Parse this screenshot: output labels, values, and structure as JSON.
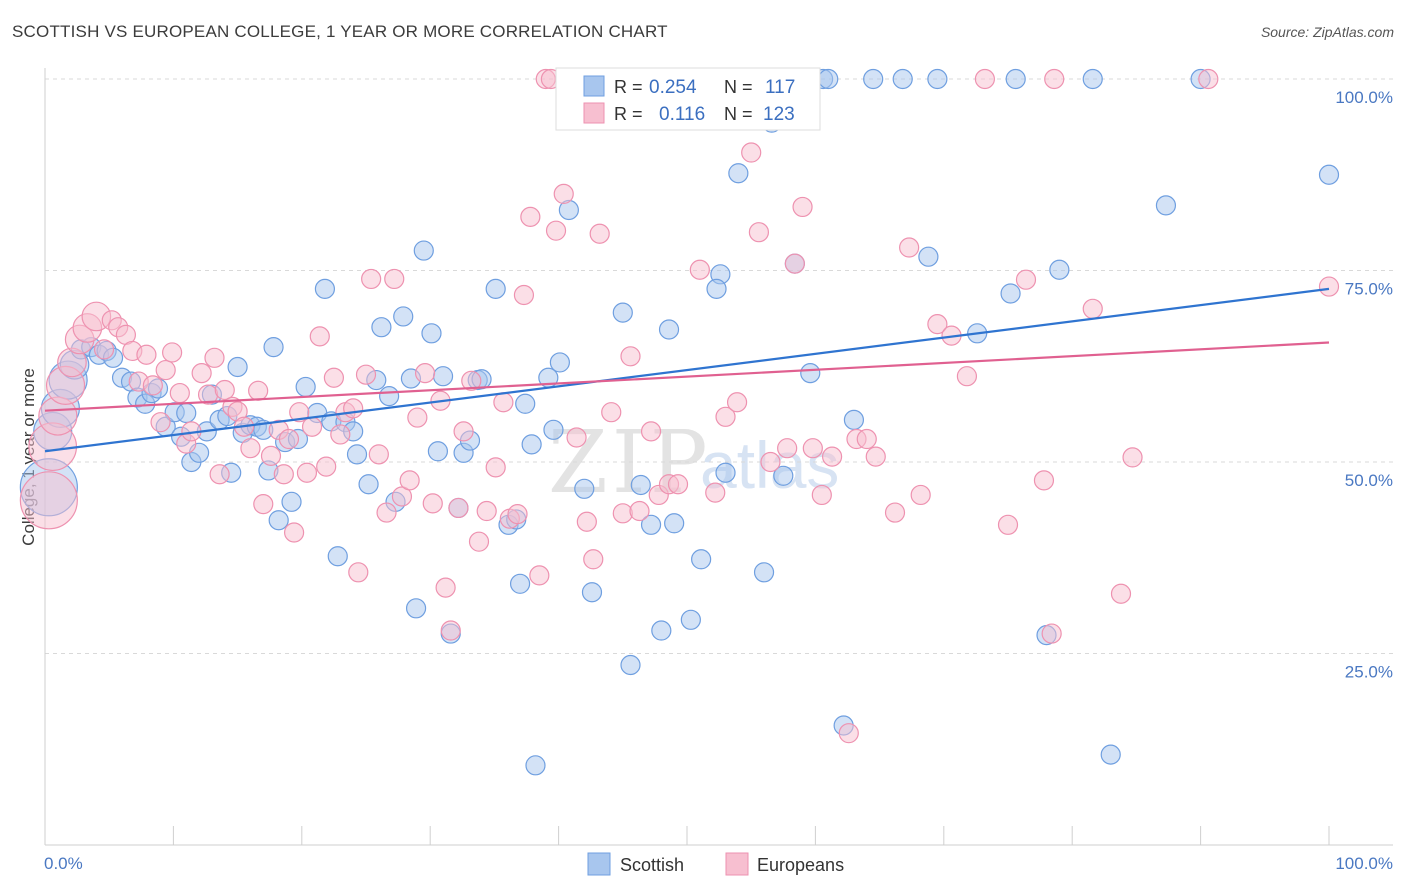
{
  "header": {
    "title": "SCOTTISH VS EUROPEAN COLLEGE, 1 YEAR OR MORE CORRELATION CHART",
    "source": "Source: ZipAtlas.com"
  },
  "colors": {
    "scottish_fill": "#a8c6ee",
    "scottish_stroke": "#6f9fe0",
    "scottish_line": "#2f74d0",
    "europeans_fill": "#f7bfd0",
    "europeans_stroke": "#ee92b0",
    "europeans_line": "#e06090",
    "tick_label": "#4a78c2",
    "grid": "#d9d9d9"
  },
  "legend_top": {
    "row1": {
      "r_label": "R =",
      "r_value": "0.254",
      "n_label": "N =",
      "n_value": "117"
    },
    "row2": {
      "r_label": "R =",
      "r_value": "0.116",
      "n_label": "N =",
      "n_value": "123"
    }
  },
  "legend_bottom": {
    "series1": "Scottish",
    "series2": "Europeans"
  },
  "watermark": {
    "part1": "ZIP",
    "part2": "atlas"
  },
  "chart_data": {
    "type": "scatter",
    "title": "SCOTTISH VS EUROPEAN COLLEGE, 1 YEAR OR MORE CORRELATION CHART",
    "xlabel": "",
    "ylabel": "College, 1 year or more",
    "xlim": [
      0,
      100
    ],
    "ylim": [
      0,
      100
    ],
    "x_tick_labels": [
      "0.0%",
      "100.0%"
    ],
    "y_ticks": [
      25,
      50,
      75,
      100
    ],
    "y_tick_labels": [
      "25.0%",
      "50.0%",
      "75.0%",
      "100.0%"
    ],
    "grid": "horizontal dashed",
    "legend_placement": "top-center and bottom",
    "series": [
      {
        "name": "Scottish",
        "R": 0.254,
        "N": 117,
        "trend": {
          "x": [
            0,
            100
          ],
          "y": [
            51.4,
            72.6
          ]
        },
        "points": [
          [
            0.3,
            46.7,
            3
          ],
          [
            0.6,
            54,
            2
          ],
          [
            1.2,
            57,
            2
          ],
          [
            1.8,
            60.7,
            2
          ],
          [
            2.3,
            62.7,
            1.5
          ],
          [
            2.8,
            64.7,
            1
          ],
          [
            3.6,
            65,
            1
          ],
          [
            4.2,
            64,
            1
          ],
          [
            4.8,
            64.5,
            1
          ],
          [
            5.3,
            63.6,
            1
          ],
          [
            6,
            61,
            1
          ],
          [
            6.7,
            60.5,
            1
          ],
          [
            7.2,
            58.4,
            1
          ],
          [
            7.8,
            57.6,
            1
          ],
          [
            8.3,
            59,
            1
          ],
          [
            8.8,
            59.6,
            1
          ],
          [
            9.4,
            54.6,
            1
          ],
          [
            10.1,
            56.5,
            1
          ],
          [
            10.6,
            53.3,
            1
          ],
          [
            11,
            56.4,
            1
          ],
          [
            11.4,
            50,
            1
          ],
          [
            12,
            51.2,
            1
          ],
          [
            12.6,
            54,
            1
          ],
          [
            13,
            58.8,
            1
          ],
          [
            13.6,
            55.5,
            1
          ],
          [
            14.2,
            56,
            1
          ],
          [
            14.5,
            48.6,
            1
          ],
          [
            15,
            62.4,
            1
          ],
          [
            15.4,
            53.8,
            1
          ],
          [
            16,
            54.8,
            1
          ],
          [
            16.5,
            54.6,
            1
          ],
          [
            17,
            54.2,
            1
          ],
          [
            17.4,
            48.9,
            1
          ],
          [
            17.8,
            65,
            1
          ],
          [
            18.2,
            42.4,
            1
          ],
          [
            18.7,
            52.6,
            1
          ],
          [
            19.2,
            44.8,
            1
          ],
          [
            19.7,
            53,
            1
          ],
          [
            20.3,
            59.8,
            1
          ],
          [
            21.2,
            56.4,
            1
          ],
          [
            21.8,
            72.6,
            1
          ],
          [
            22.3,
            55.3,
            1
          ],
          [
            22.8,
            37.7,
            1
          ],
          [
            23.4,
            55.2,
            1
          ],
          [
            24,
            54,
            1
          ],
          [
            24.3,
            51,
            1
          ],
          [
            25.2,
            47.1,
            1
          ],
          [
            25.8,
            60.7,
            1
          ],
          [
            26.2,
            67.6,
            1
          ],
          [
            26.8,
            58.6,
            1
          ],
          [
            27.3,
            44.8,
            1
          ],
          [
            27.9,
            69,
            1
          ],
          [
            28.5,
            60.9,
            1
          ],
          [
            28.9,
            30.9,
            1
          ],
          [
            29.5,
            77.6,
            1
          ],
          [
            30.1,
            66.8,
            1
          ],
          [
            30.6,
            51.4,
            1
          ],
          [
            31,
            61.2,
            1
          ],
          [
            31.6,
            27.6,
            1
          ],
          [
            32.2,
            44,
            1
          ],
          [
            32.6,
            51.2,
            1
          ],
          [
            33.1,
            52.8,
            1
          ],
          [
            33.7,
            60.7,
            1
          ],
          [
            34,
            60.8,
            1
          ],
          [
            35.1,
            72.6,
            1
          ],
          [
            36.1,
            41.8,
            1
          ],
          [
            36.7,
            42.5,
            1
          ],
          [
            37,
            34.1,
            1
          ],
          [
            37.4,
            57.6,
            1
          ],
          [
            37.9,
            52.3,
            1
          ],
          [
            38.2,
            10.4,
            1
          ],
          [
            39.2,
            61,
            1
          ],
          [
            39.6,
            54.2,
            1
          ],
          [
            40.1,
            63,
            1
          ],
          [
            40.8,
            82.9,
            1
          ],
          [
            42,
            46.5,
            1
          ],
          [
            42.6,
            33,
            1
          ],
          [
            43.4,
            94.6,
            1
          ],
          [
            45,
            69.5,
            1
          ],
          [
            45.6,
            23.5,
            1
          ],
          [
            46.4,
            47,
            1
          ],
          [
            47.2,
            41.8,
            1
          ],
          [
            48,
            28,
            1
          ],
          [
            48.6,
            67.3,
            1
          ],
          [
            49,
            42,
            1
          ],
          [
            50.3,
            29.4,
            1
          ],
          [
            51.1,
            37.3,
            1
          ],
          [
            52.6,
            74.5,
            1
          ],
          [
            52.3,
            72.6,
            1
          ],
          [
            53,
            48.6,
            1
          ],
          [
            54,
            87.7,
            1
          ],
          [
            54.6,
            100,
            1
          ],
          [
            56,
            35.6,
            1
          ],
          [
            56.6,
            94.3,
            1
          ],
          [
            57.5,
            48.2,
            1
          ],
          [
            58.4,
            75.9,
            1
          ],
          [
            59.6,
            61.6,
            1
          ],
          [
            60.6,
            100,
            1
          ],
          [
            61,
            100,
            1
          ],
          [
            62.2,
            15.6,
            1
          ],
          [
            63,
            55.5,
            1
          ],
          [
            64.5,
            100,
            1
          ],
          [
            66.8,
            100,
            1
          ],
          [
            68.8,
            76.8,
            1
          ],
          [
            69.5,
            100,
            1
          ],
          [
            72.6,
            66.8,
            1
          ],
          [
            75.2,
            72,
            1
          ],
          [
            75.6,
            100,
            1
          ],
          [
            78,
            27.4,
            1
          ],
          [
            79,
            75.1,
            1
          ],
          [
            81.6,
            100,
            1
          ],
          [
            83,
            11.8,
            1
          ],
          [
            87.3,
            83.5,
            1
          ],
          [
            90,
            100,
            1
          ],
          [
            100,
            87.5,
            1
          ]
        ]
      },
      {
        "name": "Europeans",
        "R": 0.116,
        "N": 123,
        "trend": {
          "x": [
            0,
            100
          ],
          "y": [
            56.7,
            65.6
          ]
        },
        "points": [
          [
            0.3,
            45,
            3
          ],
          [
            0.6,
            52,
            2.5
          ],
          [
            1,
            56,
            2
          ],
          [
            1.6,
            60,
            2
          ],
          [
            2.1,
            63,
            1.5
          ],
          [
            2.7,
            66,
            1.5
          ],
          [
            3.3,
            67.5,
            1.5
          ],
          [
            4,
            69,
            1.5
          ],
          [
            4.6,
            64.7,
            1
          ],
          [
            5.2,
            68.5,
            1
          ],
          [
            5.7,
            67.6,
            1
          ],
          [
            6.3,
            66.6,
            1
          ],
          [
            6.8,
            64.5,
            1
          ],
          [
            7.3,
            60.5,
            1
          ],
          [
            7.9,
            64,
            1
          ],
          [
            8.4,
            60,
            1
          ],
          [
            9,
            55.2,
            1
          ],
          [
            9.4,
            62,
            1
          ],
          [
            9.9,
            64.3,
            1
          ],
          [
            10.5,
            59,
            1
          ],
          [
            11,
            52.4,
            1
          ],
          [
            11.4,
            54,
            1
          ],
          [
            12.2,
            61.6,
            1
          ],
          [
            12.7,
            58.8,
            1
          ],
          [
            13.2,
            63.6,
            1
          ],
          [
            13.6,
            48.4,
            1
          ],
          [
            14,
            59.4,
            1
          ],
          [
            14.6,
            57.2,
            1
          ],
          [
            15,
            56.6,
            1
          ],
          [
            15.5,
            54.6,
            1
          ],
          [
            16,
            51.8,
            1
          ],
          [
            16.6,
            59.3,
            1
          ],
          [
            17,
            44.5,
            1
          ],
          [
            17.6,
            50.8,
            1
          ],
          [
            18.2,
            54.2,
            1
          ],
          [
            18.6,
            48.4,
            1
          ],
          [
            19,
            53,
            1
          ],
          [
            19.4,
            40.8,
            1
          ],
          [
            19.8,
            56.5,
            1
          ],
          [
            20.4,
            48.6,
            1
          ],
          [
            20.8,
            54.6,
            1
          ],
          [
            21.4,
            66.4,
            1
          ],
          [
            21.9,
            49.4,
            1
          ],
          [
            22.5,
            61,
            1
          ],
          [
            23,
            53.6,
            1
          ],
          [
            23.4,
            56.5,
            1
          ],
          [
            24,
            57,
            1
          ],
          [
            24.4,
            35.6,
            1
          ],
          [
            25,
            61.4,
            1
          ],
          [
            25.4,
            73.9,
            1
          ],
          [
            26,
            51,
            1
          ],
          [
            26.6,
            43.4,
            1
          ],
          [
            27.2,
            73.9,
            1
          ],
          [
            27.8,
            45.5,
            1
          ],
          [
            28.4,
            47.6,
            1
          ],
          [
            29,
            55.8,
            1
          ],
          [
            29.6,
            61.6,
            1
          ],
          [
            30.2,
            44.6,
            1
          ],
          [
            30.8,
            58,
            1
          ],
          [
            31.2,
            33.6,
            1
          ],
          [
            31.6,
            28,
            1
          ],
          [
            32.2,
            44,
            1
          ],
          [
            32.6,
            54,
            1
          ],
          [
            33.2,
            60.6,
            1
          ],
          [
            33.8,
            39.6,
            1
          ],
          [
            34.4,
            43.6,
            1
          ],
          [
            35.1,
            49.3,
            1
          ],
          [
            35.7,
            57.8,
            1
          ],
          [
            36.2,
            42.6,
            1
          ],
          [
            36.8,
            43.2,
            1
          ],
          [
            37.3,
            71.8,
            1
          ],
          [
            37.8,
            82,
            1
          ],
          [
            38.5,
            35.2,
            1
          ],
          [
            39,
            100,
            1
          ],
          [
            39.4,
            100,
            1
          ],
          [
            39.8,
            80.2,
            1
          ],
          [
            40.4,
            85,
            1
          ],
          [
            41.4,
            53.2,
            1
          ],
          [
            42.2,
            42.2,
            1
          ],
          [
            42.7,
            37.3,
            1
          ],
          [
            43.2,
            79.8,
            1
          ],
          [
            44.1,
            56.5,
            1
          ],
          [
            45,
            43.3,
            1
          ],
          [
            45.6,
            63.8,
            1
          ],
          [
            46.3,
            43.6,
            1
          ],
          [
            47.2,
            54,
            1
          ],
          [
            47.8,
            45.7,
            1
          ],
          [
            48.6,
            47.1,
            1
          ],
          [
            49.3,
            47.1,
            1
          ],
          [
            50,
            100,
            1
          ],
          [
            51,
            75.1,
            1
          ],
          [
            52.2,
            46,
            1
          ],
          [
            53,
            55.9,
            1
          ],
          [
            53.9,
            57.8,
            1
          ],
          [
            55,
            90.4,
            1
          ],
          [
            55.6,
            80,
            1
          ],
          [
            56.5,
            50,
            1
          ],
          [
            57.8,
            51.8,
            1
          ],
          [
            58.4,
            75.9,
            1
          ],
          [
            59,
            83.3,
            1
          ],
          [
            59.8,
            51.8,
            1
          ],
          [
            60.5,
            45.7,
            1
          ],
          [
            61.3,
            50.7,
            1
          ],
          [
            62.6,
            14.6,
            1
          ],
          [
            63.2,
            53,
            1
          ],
          [
            64,
            53,
            1
          ],
          [
            64.7,
            50.7,
            1
          ],
          [
            66.2,
            43.4,
            1
          ],
          [
            67.3,
            78,
            1
          ],
          [
            68.2,
            45.7,
            1
          ],
          [
            69.5,
            68,
            1
          ],
          [
            70.6,
            66.5,
            1
          ],
          [
            71.8,
            61.2,
            1
          ],
          [
            73.2,
            100,
            1
          ],
          [
            75,
            41.8,
            1
          ],
          [
            76.4,
            73.8,
            1
          ],
          [
            77.8,
            47.6,
            1
          ],
          [
            78.4,
            27.6,
            1
          ],
          [
            78.6,
            100,
            1
          ],
          [
            81.6,
            70,
            1
          ],
          [
            83.8,
            32.8,
            1
          ],
          [
            84.7,
            50.6,
            1
          ],
          [
            90.6,
            100,
            1
          ],
          [
            100,
            72.9,
            1
          ]
        ]
      }
    ]
  }
}
